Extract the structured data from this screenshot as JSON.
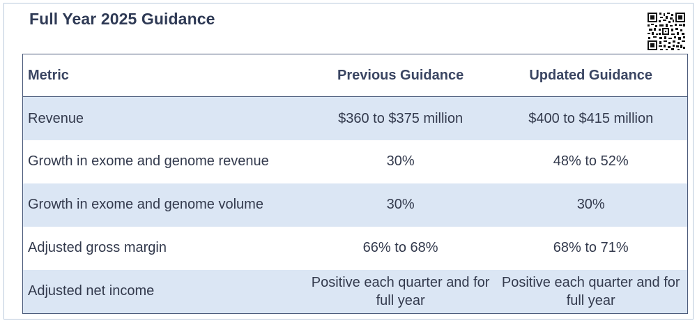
{
  "title": "Full Year 2025 Guidance",
  "qr_icon": "qr-code-icon",
  "table": {
    "headers": {
      "metric": "Metric",
      "previous": "Previous Guidance",
      "updated": "Updated Guidance"
    },
    "rows": [
      {
        "metric": "Revenue",
        "previous": "$360 to $375 million",
        "updated": "$400 to $415 million"
      },
      {
        "metric": "Growth in exome and genome revenue",
        "previous": "30%",
        "updated": "48% to 52%"
      },
      {
        "metric": "Growth in exome and genome volume",
        "previous": "30%",
        "updated": "30%"
      },
      {
        "metric": "Adjusted gross margin",
        "previous": "66% to 68%",
        "updated": "68% to 71%"
      },
      {
        "metric": "Adjusted net income",
        "previous": "Positive each quarter and for full year",
        "updated": "Positive each quarter and for full year"
      }
    ]
  },
  "colors": {
    "shade": "#dbe6f4",
    "border": "#4a5a7a",
    "title": "#2f3a55"
  }
}
